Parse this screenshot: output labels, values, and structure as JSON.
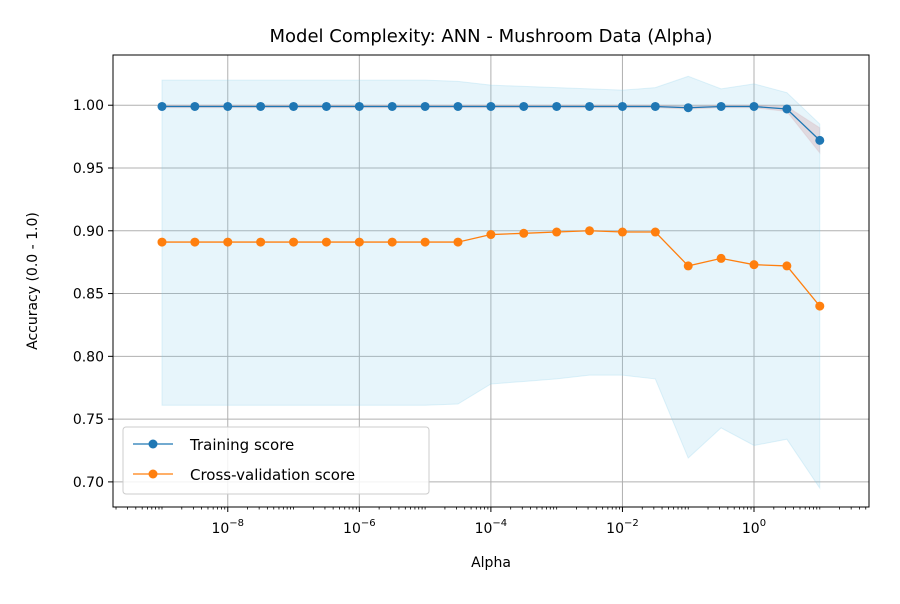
{
  "chart_data": {
    "type": "line",
    "title": "Model Complexity: ANN - Mushroom Data (Alpha)",
    "xlabel": "Alpha",
    "ylabel": "Accuracy (0.0 - 1.0)",
    "xscale": "log",
    "xlim": [
      1.8e-10,
      56
    ],
    "ylim": [
      0.68,
      1.04
    ],
    "grid": true,
    "legend_position": "lower-left",
    "x_ticks": [
      {
        "value": 1e-08,
        "base": "10",
        "exp": "−8"
      },
      {
        "value": 1e-06,
        "base": "10",
        "exp": "−6"
      },
      {
        "value": 0.0001,
        "base": "10",
        "exp": "−4"
      },
      {
        "value": 0.01,
        "base": "10",
        "exp": "−2"
      },
      {
        "value": 1,
        "base": "10",
        "exp": "0"
      }
    ],
    "y_ticks": [
      "0.70",
      "0.75",
      "0.80",
      "0.85",
      "0.90",
      "0.95",
      "1.00"
    ],
    "x": [
      1e-09,
      3.16e-09,
      1e-08,
      3.16e-08,
      1e-07,
      3.16e-07,
      1e-06,
      3.16e-06,
      1e-05,
      3.16e-05,
      0.0001,
      0.000316,
      0.001,
      0.00316,
      0.01,
      0.0316,
      0.1,
      0.316,
      1,
      3.16,
      10
    ],
    "series": [
      {
        "name": "Training score",
        "color": "#1f77b4",
        "values": [
          0.999,
          0.999,
          0.999,
          0.999,
          0.999,
          0.999,
          0.999,
          0.999,
          0.999,
          0.999,
          0.999,
          0.999,
          0.999,
          0.999,
          0.999,
          0.999,
          0.998,
          0.999,
          0.999,
          0.997,
          0.972
        ],
        "band": {
          "color": "#e8a0a0",
          "lower": [
            0.998,
            0.998,
            0.998,
            0.998,
            0.998,
            0.998,
            0.998,
            0.998,
            0.998,
            0.998,
            0.998,
            0.998,
            0.998,
            0.998,
            0.998,
            0.998,
            0.997,
            0.998,
            0.998,
            0.995,
            0.962
          ],
          "upper": [
            1.0,
            1.0,
            1.0,
            1.0,
            1.0,
            1.0,
            1.0,
            1.0,
            1.0,
            1.0,
            1.0,
            1.0,
            1.0,
            1.0,
            1.0,
            1.0,
            0.999,
            1.0,
            1.0,
            0.999,
            0.982
          ]
        }
      },
      {
        "name": "Cross-validation score",
        "color": "#ff7f0e",
        "values": [
          0.891,
          0.891,
          0.891,
          0.891,
          0.891,
          0.891,
          0.891,
          0.891,
          0.891,
          0.891,
          0.897,
          0.898,
          0.899,
          0.9,
          0.899,
          0.899,
          0.872,
          0.878,
          0.873,
          0.872,
          0.84
        ],
        "band": {
          "color": "#87ceeb",
          "lower": [
            0.761,
            0.761,
            0.761,
            0.761,
            0.761,
            0.761,
            0.761,
            0.761,
            0.761,
            0.762,
            0.778,
            0.78,
            0.782,
            0.785,
            0.785,
            0.782,
            0.719,
            0.743,
            0.729,
            0.734,
            0.695
          ],
          "upper": [
            1.02,
            1.02,
            1.02,
            1.02,
            1.02,
            1.02,
            1.02,
            1.02,
            1.02,
            1.019,
            1.016,
            1.015,
            1.014,
            1.013,
            1.012,
            1.014,
            1.023,
            1.013,
            1.017,
            1.01,
            0.985
          ]
        }
      }
    ]
  }
}
